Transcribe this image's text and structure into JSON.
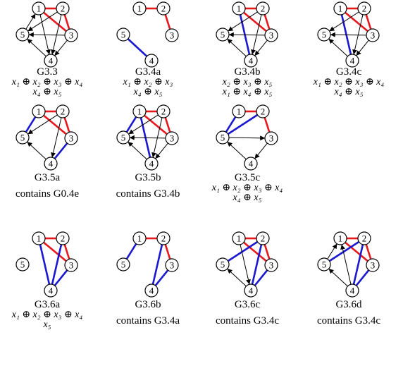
{
  "colors": {
    "red": "#e8161d",
    "blue": "#1a18d0",
    "black": "#000000"
  },
  "graphs": [
    {
      "id": "G3.3",
      "nodes": [
        1,
        2,
        3,
        4,
        5
      ],
      "red": [
        [
          1,
          2
        ],
        [
          1,
          3
        ],
        [
          2,
          3
        ]
      ],
      "blue": [],
      "arcs": [
        [
          5,
          1
        ],
        [
          2,
          5
        ],
        [
          3,
          5
        ],
        [
          4,
          5
        ],
        [
          1,
          4
        ],
        [
          2,
          4
        ],
        [
          3,
          4
        ]
      ],
      "caption": {
        "name": "G3.3",
        "lines": [
          "x₁ ⊕ x₂ ⊕ x₃ ⊕ x₄",
          "x₄ ⊕ x₅"
        ],
        "text": ""
      }
    },
    {
      "id": "G3.4a",
      "nodes": [
        1,
        2,
        3,
        4,
        5
      ],
      "red": [
        [
          1,
          2
        ],
        [
          2,
          3
        ]
      ],
      "blue": [
        [
          5,
          4
        ]
      ],
      "arcs": [],
      "caption": {
        "name": "G3.4a",
        "lines": [
          "x₁ ⊕ x₂ ⊕ x₃",
          "x₄ ⊕ x₅"
        ],
        "text": ""
      }
    },
    {
      "id": "G3.4b",
      "nodes": [
        1,
        2,
        3,
        4,
        5
      ],
      "red": [
        [
          1,
          2
        ],
        [
          1,
          3
        ],
        [
          2,
          3
        ]
      ],
      "blue": [
        [
          1,
          4
        ]
      ],
      "arcs": [
        [
          2,
          5
        ],
        [
          3,
          5
        ],
        [
          4,
          5
        ],
        [
          2,
          4
        ],
        [
          3,
          4
        ]
      ],
      "caption": {
        "name": "G3.4b",
        "lines": [
          "x₂ ⊕ x₃ ⊕ x₅",
          "x₁ ⊕ x₄ ⊕ x₅"
        ],
        "text": ""
      }
    },
    {
      "id": "G3.4c",
      "nodes": [
        1,
        2,
        3,
        4,
        5
      ],
      "red": [
        [
          1,
          2
        ],
        [
          1,
          3
        ],
        [
          2,
          3
        ]
      ],
      "blue": [
        [
          1,
          4
        ]
      ],
      "arcs": [
        [
          2,
          5
        ],
        [
          3,
          5
        ],
        [
          4,
          5
        ],
        [
          2,
          4
        ],
        [
          3,
          4
        ]
      ],
      "caption": {
        "name": "G3.4c",
        "lines": [
          "x₁ ⊕ x₂ ⊕ x₃ ⊕ x₄",
          "x₄ ⊕ x₅"
        ],
        "text": ""
      }
    },
    {
      "id": "G3.5a",
      "nodes": [
        1,
        2,
        3,
        4,
        5
      ],
      "red": [
        [
          1,
          2
        ],
        [
          1,
          3
        ],
        [
          2,
          3
        ]
      ],
      "blue": [
        [
          1,
          5
        ],
        [
          3,
          4
        ]
      ],
      "arcs": [
        [
          4,
          5
        ],
        [
          2,
          4
        ],
        [
          2,
          5
        ]
      ],
      "caption": {
        "name": "G3.5a",
        "lines": [],
        "text": "contains G0.4e"
      }
    },
    {
      "id": "G3.5b",
      "nodes": [
        1,
        2,
        3,
        4,
        5
      ],
      "red": [
        [
          1,
          2
        ],
        [
          1,
          3
        ],
        [
          2,
          3
        ]
      ],
      "blue": [
        [
          1,
          5
        ],
        [
          1,
          4
        ]
      ],
      "arcs": [
        [
          2,
          5
        ],
        [
          3,
          5
        ],
        [
          4,
          5
        ],
        [
          2,
          4
        ],
        [
          3,
          4
        ]
      ],
      "caption": {
        "name": "G3.5b",
        "lines": [],
        "text": "contains G3.4b"
      }
    },
    {
      "id": "G3.5c",
      "nodes": [
        1,
        2,
        3,
        4,
        5
      ],
      "red": [
        [
          1,
          2
        ],
        [
          2,
          3
        ]
      ],
      "blue": [
        [
          1,
          5
        ],
        [
          2,
          5
        ]
      ],
      "arcs": [
        [
          5,
          3
        ],
        [
          3,
          4
        ],
        [
          4,
          5
        ]
      ],
      "caption": {
        "name": "G3.5c",
        "lines": [
          "x₁ ⊕ x₂ ⊕ x₃ ⊕ x₄",
          "x₄ ⊕ x₅"
        ],
        "text": ""
      }
    },
    {
      "id": "G3.6a",
      "nodes": [
        1,
        2,
        3,
        4,
        5
      ],
      "red": [
        [
          1,
          2
        ],
        [
          1,
          3
        ],
        [
          2,
          3
        ]
      ],
      "blue": [
        [
          1,
          4
        ],
        [
          2,
          4
        ],
        [
          3,
          4
        ]
      ],
      "arcs": [],
      "caption": {
        "name": "G3.6a",
        "lines": [
          "x₁ ⊕ x₂ ⊕ x₃ ⊕ x₄",
          "x₅"
        ],
        "text": ""
      }
    },
    {
      "id": "G3.6b",
      "nodes": [
        1,
        2,
        3,
        4,
        5
      ],
      "red": [
        [
          1,
          2
        ],
        [
          2,
          3
        ]
      ],
      "blue": [
        [
          1,
          5
        ],
        [
          2,
          4
        ],
        [
          3,
          4
        ]
      ],
      "arcs": [],
      "caption": {
        "name": "G3.6b",
        "lines": [],
        "text": "contains G3.4a"
      }
    },
    {
      "id": "G3.6c",
      "nodes": [
        1,
        2,
        3,
        4,
        5
      ],
      "red": [
        [
          1,
          2
        ],
        [
          1,
          3
        ],
        [
          2,
          3
        ]
      ],
      "blue": [
        [
          2,
          5
        ],
        [
          2,
          4
        ],
        [
          3,
          4
        ]
      ],
      "arcs": [
        [
          4,
          5
        ],
        [
          1,
          4
        ]
      ],
      "caption": {
        "name": "G3.6c",
        "lines": [],
        "text": "contains G3.4c"
      }
    },
    {
      "id": "G3.6d",
      "nodes": [
        1,
        2,
        3,
        4,
        5
      ],
      "red": [
        [
          1,
          2
        ],
        [
          1,
          3
        ],
        [
          2,
          3
        ]
      ],
      "blue": [
        [
          2,
          5
        ],
        [
          2,
          4
        ],
        [
          3,
          4
        ]
      ],
      "arcs": [
        [
          4,
          1
        ],
        [
          4,
          5
        ],
        [
          5,
          1
        ]
      ],
      "caption": {
        "name": "G3.6d",
        "lines": [],
        "text": "contains G3.4c"
      }
    }
  ]
}
